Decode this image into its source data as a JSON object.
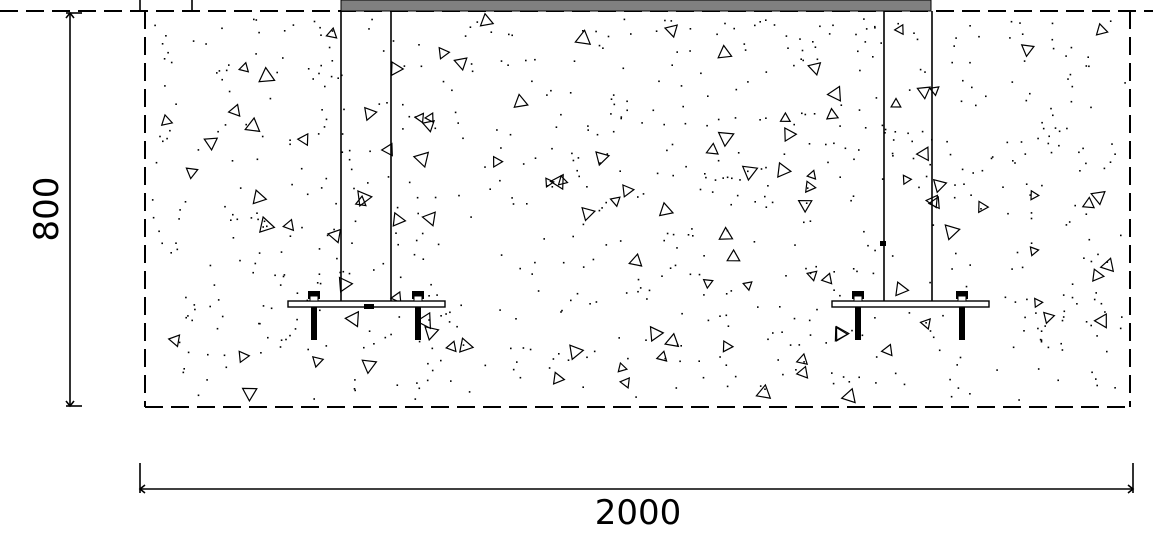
{
  "dimensions": {
    "height_label": "800",
    "width_label": "2000"
  },
  "colors": {
    "line": "#000000",
    "top_plate": "#808080",
    "background": "#ffffff",
    "concrete_fill": "#ffffff"
  },
  "elements": {
    "foundation": "concrete-foundation-block",
    "top_plate": "steel-top-plate",
    "left_column": "left-column",
    "right_column": "right-column",
    "left_base_plate": "left-base-plate-with-anchor-bolts",
    "right_base_plate": "right-base-plate-with-anchor-bolts"
  }
}
